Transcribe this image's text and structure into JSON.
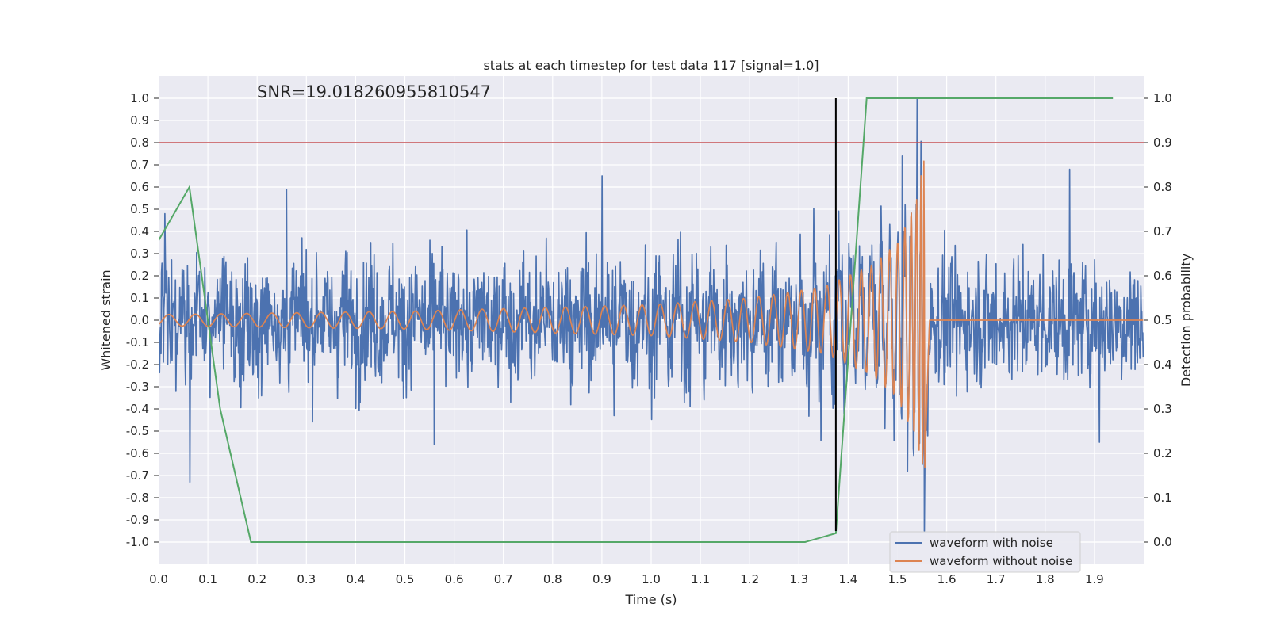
{
  "chart_data": {
    "type": "line",
    "title": "stats at each timestep for test data 117 [signal=1.0]",
    "annotation": "SNR=19.018260955810547",
    "xlabel": "Time (s)",
    "ylabel_left": "Whitened strain",
    "ylabel_right": "Detection probability",
    "xlim": [
      0.0,
      2.0
    ],
    "ylim_left": [
      -1.1,
      1.1
    ],
    "ylim_right": [
      -0.05,
      1.05
    ],
    "x_ticks": [
      "0.0",
      "0.1",
      "0.2",
      "0.3",
      "0.4",
      "0.5",
      "0.6",
      "0.7",
      "0.8",
      "0.9",
      "1.0",
      "1.1",
      "1.2",
      "1.3",
      "1.4",
      "1.5",
      "1.6",
      "1.7",
      "1.8",
      "1.9"
    ],
    "y_ticks_left": [
      "-1.0",
      "-0.9",
      "-0.8",
      "-0.7",
      "-0.6",
      "-0.5",
      "-0.4",
      "-0.3",
      "-0.2",
      "-0.1",
      "0.0",
      "0.1",
      "0.2",
      "0.3",
      "0.4",
      "0.5",
      "0.6",
      "0.7",
      "0.8",
      "0.9",
      "1.0"
    ],
    "y_ticks_right": [
      "0.0",
      "0.1",
      "0.2",
      "0.3",
      "0.4",
      "0.5",
      "0.6",
      "0.7",
      "0.8",
      "0.9",
      "1.0"
    ],
    "grid": true,
    "legend_position": "lower-right",
    "series": [
      {
        "name": "waveform with noise",
        "color": "#4c72b0",
        "axis": "left",
        "description": "dense noisy strain, amplitude mostly within ±0.4, spikes up to 1.0 and down to -0.95 near 1.54-1.56 s",
        "peaks": [
          {
            "x": 0.013,
            "y": 0.48
          },
          {
            "x": 0.063,
            "y": -0.73
          },
          {
            "x": 0.26,
            "y": 0.59
          },
          {
            "x": 0.56,
            "y": -0.56
          },
          {
            "x": 0.9,
            "y": 0.65
          },
          {
            "x": 1.51,
            "y": 0.74
          },
          {
            "x": 1.54,
            "y": 1.0
          },
          {
            "x": 1.555,
            "y": -0.95
          },
          {
            "x": 1.85,
            "y": 0.68
          },
          {
            "x": 1.91,
            "y": -0.55
          }
        ]
      },
      {
        "name": "waveform without noise",
        "color": "#dd8452",
        "axis": "left",
        "description": "chirp signal growing in amplitude and frequency, merger near 1.555 s, flat zero afterwards",
        "envelope": [
          {
            "x": 0.0,
            "amp": 0.025
          },
          {
            "x": 0.5,
            "amp": 0.04
          },
          {
            "x": 1.0,
            "amp": 0.07
          },
          {
            "x": 1.2,
            "amp": 0.1
          },
          {
            "x": 1.35,
            "amp": 0.15
          },
          {
            "x": 1.45,
            "amp": 0.25
          },
          {
            "x": 1.5,
            "amp": 0.35
          },
          {
            "x": 1.54,
            "amp": 0.55
          },
          {
            "x": 1.555,
            "amp": 0.75
          },
          {
            "x": 1.565,
            "amp": 0.0
          }
        ]
      },
      {
        "name": "",
        "color": "#55a868",
        "axis": "right",
        "description": "detection probability",
        "x": [
          0.0,
          0.0625,
          0.125,
          0.1875,
          0.25,
          1.3125,
          1.375,
          1.4375,
          1.5,
          1.9375
        ],
        "y": [
          0.68,
          0.8,
          0.3,
          0.0,
          0.0,
          0.0,
          0.02,
          1.0,
          1.0,
          1.0
        ]
      }
    ],
    "hlines": [
      {
        "axis": "left",
        "y": 0.8,
        "color": "#c44e52"
      }
    ],
    "vlines": [
      {
        "x": 1.375,
        "ymin": -0.95,
        "ymax": 1.0,
        "color": "#000000"
      }
    ]
  }
}
